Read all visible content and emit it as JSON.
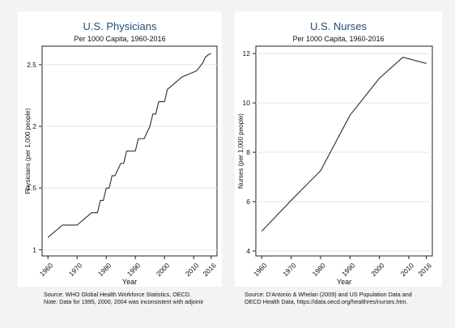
{
  "chart_data": [
    {
      "type": "line",
      "title": "U.S. Physicians",
      "subtitle": "Per 1000 Capita, 1960-2016",
      "xlabel": "Year",
      "ylabel": "Physicians (per 1,000 people)",
      "xlim": [
        1958,
        2018
      ],
      "ylim": [
        0.95,
        2.65
      ],
      "x_ticks": [
        1960,
        1970,
        1980,
        1990,
        2000,
        2010,
        2016
      ],
      "y_ticks": [
        1,
        1.5,
        2,
        2.5
      ],
      "y_tick_labels": [
        "1",
        "1.5",
        "2",
        "2.5"
      ],
      "grid": true,
      "series": [
        {
          "name": "Physicians",
          "x": [
            1960,
            1961,
            1962,
            1963,
            1964,
            1965,
            1966,
            1967,
            1968,
            1969,
            1970,
            1971,
            1972,
            1973,
            1974,
            1975,
            1976,
            1977,
            1978,
            1979,
            1980,
            1981,
            1982,
            1983,
            1984,
            1985,
            1986,
            1987,
            1988,
            1989,
            1990,
            1991,
            1992,
            1993,
            1994,
            1995,
            1996,
            1997,
            1998,
            1999,
            2000,
            2001,
            2002,
            2003,
            2004,
            2005,
            2006,
            2007,
            2008,
            2009,
            2010,
            2011,
            2012,
            2013,
            2014,
            2015,
            2016
          ],
          "values": [
            1.1,
            1.12,
            1.14,
            1.16,
            1.18,
            1.2,
            1.2,
            1.2,
            1.2,
            1.2,
            1.2,
            1.22,
            1.24,
            1.26,
            1.28,
            1.3,
            1.3,
            1.3,
            1.4,
            1.4,
            1.5,
            1.5,
            1.6,
            1.6,
            1.65,
            1.7,
            1.7,
            1.8,
            1.8,
            1.8,
            1.8,
            1.9,
            1.9,
            1.9,
            1.95,
            2.0,
            2.1,
            2.1,
            2.2,
            2.2,
            2.2,
            2.3,
            2.32,
            2.34,
            2.36,
            2.38,
            2.4,
            2.41,
            2.42,
            2.43,
            2.44,
            2.45,
            2.48,
            2.51,
            2.56,
            2.58,
            2.59
          ]
        }
      ],
      "source_note": [
        "Source: WHO Global Health Workforce Statistics, OECD.",
        "Note: Data for 1995, 2000, 2004 was inconsistent with adjoinir"
      ]
    },
    {
      "type": "line",
      "title": "U.S. Nurses",
      "subtitle": "Per 1000 Capita, 1960-2016",
      "xlabel": "Year",
      "ylabel": "Nurses (per 1,000 people)",
      "xlim": [
        1958,
        2018
      ],
      "ylim": [
        3.8,
        12.3
      ],
      "x_ticks": [
        1960,
        1970,
        1980,
        1990,
        2000,
        2010,
        2016
      ],
      "y_ticks": [
        4,
        6,
        8,
        10,
        12
      ],
      "y_tick_labels": [
        "4",
        "6",
        "8",
        "10",
        "12"
      ],
      "grid": true,
      "series": [
        {
          "name": "Nurses",
          "x": [
            1960,
            1970,
            1980,
            1990,
            2000,
            2008,
            2016
          ],
          "values": [
            4.8,
            6.05,
            7.25,
            9.5,
            11.0,
            11.85,
            11.6
          ]
        }
      ],
      "source_note": [
        "Source: D'Antonio & Whelan (2009) and US Population Data and",
        "OECD Health Data, https://data.oecd.org/healthres/nurses.htm."
      ]
    }
  ]
}
